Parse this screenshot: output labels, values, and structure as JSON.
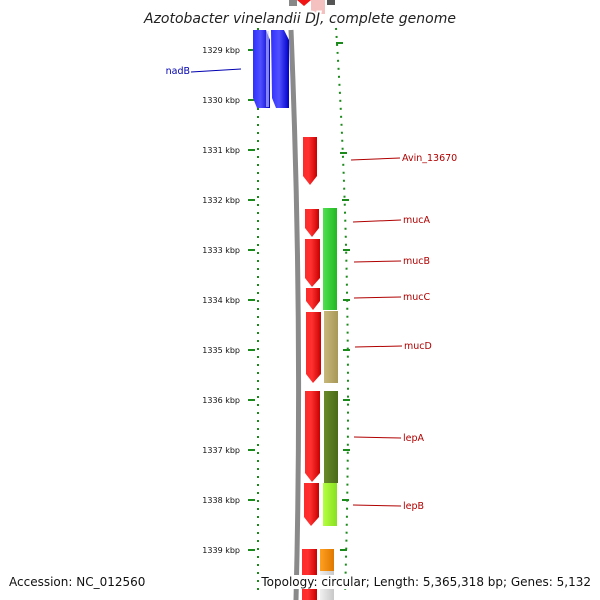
{
  "title": "Azotobacter vinelandii DJ, complete genome",
  "accession": "Accession: NC_012560",
  "topology": "Topology: circular; Length: 5,365,318 bp; Genes: 5,132",
  "colors": {
    "blue_gene": "#0b0bf0",
    "red_gene": "#f01414",
    "backbone": "#8a8a8a",
    "tick_green": "#1a8a1a",
    "label_red": "#b00000",
    "label_blue": "#0000b0"
  },
  "ticks": [
    {
      "label": "1329 kbp"
    },
    {
      "label": "1330 kbp"
    },
    {
      "label": "1331 kbp"
    },
    {
      "label": "1332 kbp"
    },
    {
      "label": "1333 kbp"
    },
    {
      "label": "1334 kbp"
    },
    {
      "label": "1335 kbp"
    },
    {
      "label": "1336 kbp"
    },
    {
      "label": "1337 kbp"
    },
    {
      "label": "1338 kbp"
    },
    {
      "label": "1339 kbp"
    }
  ],
  "genes": [
    {
      "name": "nadB"
    },
    {
      "name": "Avin_13670"
    },
    {
      "name": "mucA"
    },
    {
      "name": "mucB"
    },
    {
      "name": "mucC"
    },
    {
      "name": "mucD"
    },
    {
      "name": "lepA"
    },
    {
      "name": "lepB"
    }
  ]
}
